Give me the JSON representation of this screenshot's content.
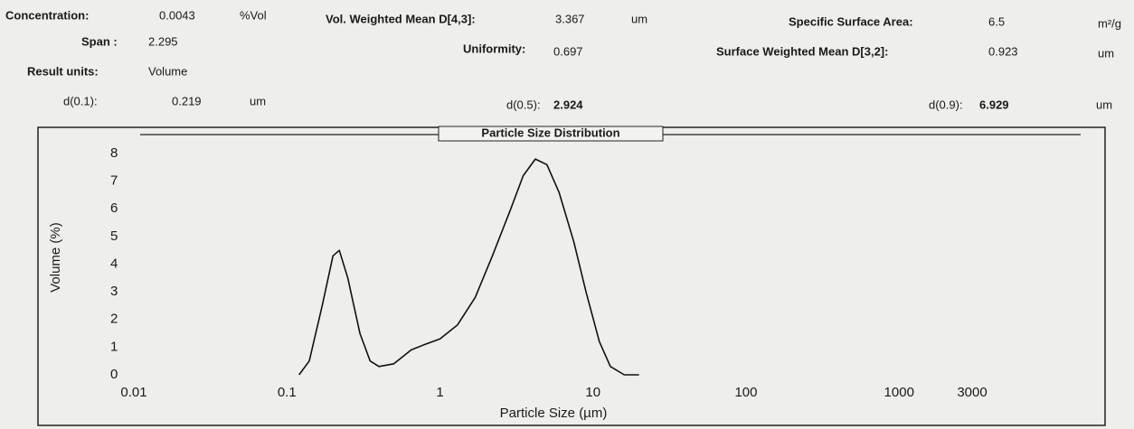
{
  "header": {
    "concentration_label": "Concentration:",
    "concentration": "0.0043",
    "concentration_unit": "%Vol",
    "vol_mean_label": "Vol. Weighted Mean D[4,3]:",
    "vol_mean": "3.367",
    "vol_mean_unit": "um",
    "ssa_label": "Specific Surface Area:",
    "ssa": "6.5",
    "ssa_unit": "m²/g",
    "span_label": "Span :",
    "span": "2.295",
    "uniformity_label": "Uniformity:",
    "uniformity": "0.697",
    "surf_mean_label": "Surface Weighted Mean D[3,2]:",
    "surf_mean": "0.923",
    "surf_mean_unit": "um",
    "units_label": "Result units:",
    "units": "Volume",
    "d10_label": "d(0.1):",
    "d10": "0.219",
    "d10_unit": "um",
    "d50_label": "d(0.5):",
    "d50": "2.924",
    "d50_unit": "um",
    "d90_label": "d(0.9):",
    "d90": "6.929",
    "d90_unit": "um"
  },
  "chart_data": {
    "type": "line",
    "title": "Particle Size Distribution",
    "x_label": "Particle Size (µm)",
    "y_label": "Volume (%)",
    "x": [
      0.12,
      0.14,
      0.17,
      0.2,
      0.22,
      0.25,
      0.3,
      0.35,
      0.4,
      0.5,
      0.65,
      0.8,
      1,
      1.3,
      1.7,
      2.2,
      2.9,
      3.5,
      4.2,
      5,
      6,
      7.5,
      9,
      11,
      13,
      16,
      20
    ],
    "series": [
      {
        "name": "Volume",
        "color": "#111111",
        "values": [
          0,
          0.5,
          2.5,
          4.3,
          4.5,
          3.5,
          1.5,
          0.5,
          0.3,
          0.4,
          0.9,
          1.1,
          1.3,
          1.8,
          2.8,
          4.3,
          6,
          7.2,
          7.8,
          7.6,
          6.6,
          4.8,
          3,
          1.2,
          0.3,
          0,
          0
        ]
      }
    ],
    "xscale": "log",
    "xlim": [
      0.01,
      3000
    ],
    "xticks": [
      0.01,
      0.1,
      1,
      10,
      100,
      1000,
      3000
    ],
    "ylim": [
      0,
      8
    ],
    "yticks": [
      0,
      1,
      2,
      3,
      4,
      5,
      6,
      7,
      8
    ]
  }
}
